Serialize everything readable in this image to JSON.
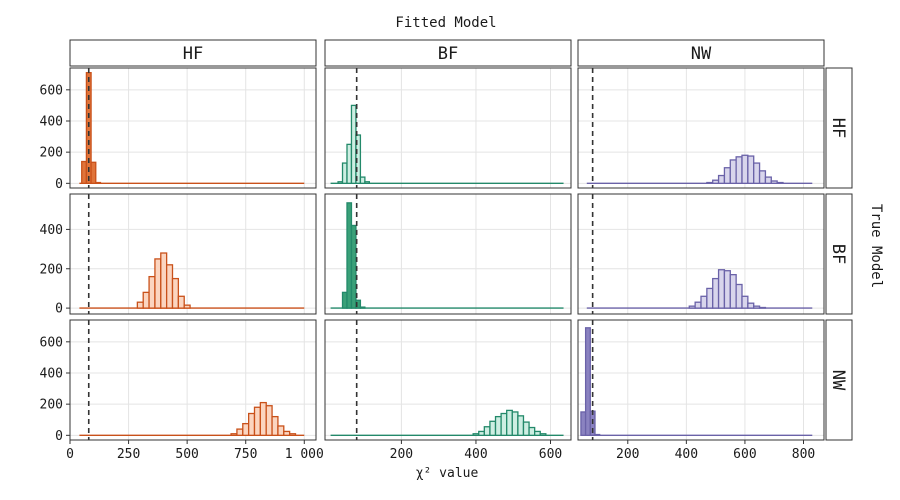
{
  "chart_data": {
    "type": "histogram-facet",
    "title": "Fitted Model",
    "xlabel": "χ² value",
    "facet_row_label": "True Model",
    "fitted_models": [
      "HF",
      "BF",
      "NW"
    ],
    "true_models": [
      "HF",
      "BF",
      "NW"
    ],
    "reference_line_x": 80,
    "colors": {
      "HF": {
        "fill_light": "#fbd5c0",
        "fill_dark": "#e0743a",
        "stroke": "#c9511a"
      },
      "BF": {
        "fill_light": "#cdeee2",
        "fill_dark": "#3aa078",
        "stroke": "#23896a"
      },
      "NW": {
        "fill_light": "#d8d5ec",
        "fill_dark": "#8a82c0",
        "stroke": "#6a62a8"
      }
    },
    "columns": [
      {
        "fitted": "HF",
        "xlim": [
          0,
          1050
        ],
        "xticks": [
          0,
          250,
          500,
          750,
          1000
        ],
        "xticklabels": [
          "0",
          "250",
          "500",
          "750",
          "1 000"
        ],
        "baseline": [
          40,
          1000
        ]
      },
      {
        "fitted": "BF",
        "xlim": [
          -5,
          655
        ],
        "xticks": [
          200,
          400,
          600
        ],
        "xticklabels": [
          "200",
          "400",
          "600"
        ],
        "baseline": [
          10,
          635
        ]
      },
      {
        "fitted": "NW",
        "xlim": [
          30,
          870
        ],
        "xticks": [
          200,
          400,
          600,
          800
        ],
        "xticklabels": [
          "200",
          "400",
          "600",
          "800"
        ],
        "baseline": [
          60,
          830
        ]
      }
    ],
    "rows": [
      {
        "true": "HF",
        "ylim": [
          -30,
          740
        ],
        "yticks": [
          0,
          200,
          400,
          600
        ],
        "yticklabels": [
          "0",
          "200",
          "400",
          "600"
        ]
      },
      {
        "true": "BF",
        "ylim": [
          -30,
          580
        ],
        "yticks": [
          0,
          200,
          400
        ],
        "yticklabels": [
          "0",
          "200",
          "400"
        ]
      },
      {
        "true": "NW",
        "ylim": [
          -30,
          740
        ],
        "yticks": [
          0,
          200,
          400,
          600
        ],
        "yticklabels": [
          "0",
          "200",
          "400",
          "600"
        ]
      }
    ],
    "panels": [
      {
        "true": "HF",
        "fitted": "HF",
        "dark": true,
        "binwidth": 20,
        "bins": [
          [
            60,
            140
          ],
          [
            80,
            710
          ],
          [
            100,
            135
          ],
          [
            120,
            5
          ]
        ]
      },
      {
        "true": "HF",
        "fitted": "BF",
        "dark": false,
        "binwidth": 12,
        "bins": [
          [
            36,
            10
          ],
          [
            48,
            130
          ],
          [
            60,
            250
          ],
          [
            72,
            500
          ],
          [
            84,
            310
          ],
          [
            96,
            40
          ],
          [
            108,
            10
          ]
        ]
      },
      {
        "true": "HF",
        "fitted": "NW",
        "dark": false,
        "binwidth": 20,
        "bins": [
          [
            480,
            5
          ],
          [
            500,
            20
          ],
          [
            520,
            50
          ],
          [
            540,
            100
          ],
          [
            560,
            150
          ],
          [
            580,
            170
          ],
          [
            600,
            180
          ],
          [
            620,
            175
          ],
          [
            640,
            130
          ],
          [
            660,
            80
          ],
          [
            680,
            40
          ],
          [
            700,
            15
          ],
          [
            720,
            5
          ]
        ]
      },
      {
        "true": "BF",
        "fitted": "HF",
        "dark": false,
        "binwidth": 25,
        "bins": [
          [
            300,
            30
          ],
          [
            325,
            80
          ],
          [
            350,
            160
          ],
          [
            375,
            250
          ],
          [
            400,
            280
          ],
          [
            425,
            220
          ],
          [
            450,
            150
          ],
          [
            475,
            60
          ],
          [
            500,
            15
          ]
        ]
      },
      {
        "true": "BF",
        "fitted": "BF",
        "dark": true,
        "binwidth": 12,
        "bins": [
          [
            48,
            80
          ],
          [
            60,
            535
          ],
          [
            72,
            420
          ],
          [
            84,
            40
          ],
          [
            96,
            5
          ]
        ]
      },
      {
        "true": "BF",
        "fitted": "NW",
        "dark": false,
        "binwidth": 20,
        "bins": [
          [
            420,
            10
          ],
          [
            440,
            30
          ],
          [
            460,
            60
          ],
          [
            480,
            100
          ],
          [
            500,
            150
          ],
          [
            520,
            195
          ],
          [
            540,
            190
          ],
          [
            560,
            170
          ],
          [
            580,
            120
          ],
          [
            600,
            60
          ],
          [
            620,
            25
          ],
          [
            640,
            10
          ],
          [
            660,
            3
          ]
        ]
      },
      {
        "true": "NW",
        "fitted": "HF",
        "dark": false,
        "binwidth": 25,
        "bins": [
          [
            700,
            10
          ],
          [
            725,
            40
          ],
          [
            750,
            75
          ],
          [
            775,
            140
          ],
          [
            800,
            180
          ],
          [
            825,
            210
          ],
          [
            850,
            190
          ],
          [
            875,
            120
          ],
          [
            900,
            60
          ],
          [
            925,
            25
          ],
          [
            950,
            10
          ]
        ]
      },
      {
        "true": "NW",
        "fitted": "BF",
        "dark": false,
        "binwidth": 15,
        "bins": [
          [
            400,
            10
          ],
          [
            415,
            25
          ],
          [
            430,
            55
          ],
          [
            445,
            90
          ],
          [
            460,
            120
          ],
          [
            475,
            140
          ],
          [
            490,
            160
          ],
          [
            505,
            150
          ],
          [
            520,
            125
          ],
          [
            535,
            85
          ],
          [
            550,
            50
          ],
          [
            565,
            25
          ],
          [
            580,
            10
          ]
        ]
      },
      {
        "true": "NW",
        "fitted": "NW",
        "dark": true,
        "binwidth": 16,
        "bins": [
          [
            48,
            150
          ],
          [
            64,
            690
          ],
          [
            80,
            155
          ],
          [
            96,
            5
          ]
        ]
      }
    ]
  }
}
